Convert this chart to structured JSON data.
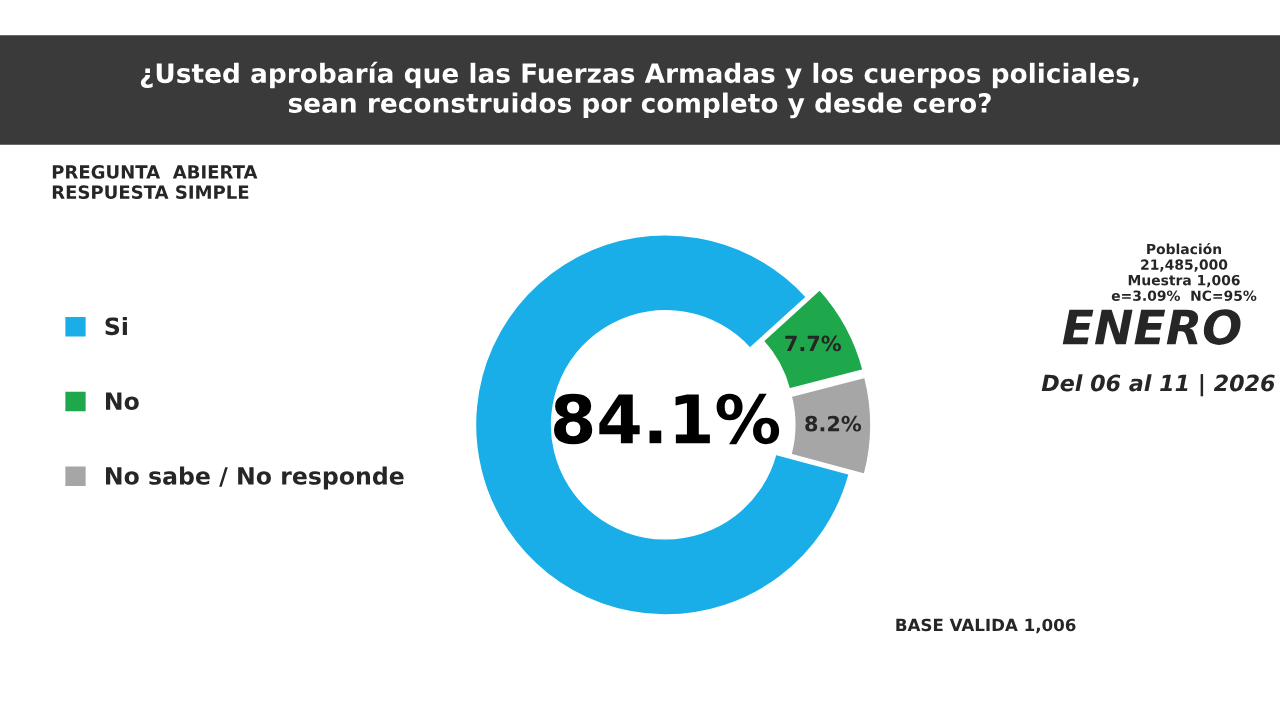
{
  "chart_data": {
    "type": "donut",
    "title": "¿Usted aprobaría que las Fuerzas Armadas y los cuerpos policiales,\nsean reconstruidos por completo y desde cero?",
    "subtitle": "PREGUNTA  ABIERTA\nRESPUESTA SIMPLE",
    "categories": [
      "Si",
      "No",
      "No sabe / No responde"
    ],
    "values": [
      84.1,
      7.7,
      8.2
    ],
    "value_labels": [
      "84.1%",
      "7.7%",
      "8.2%"
    ],
    "colors": [
      "#1aaee8",
      "#1ea84b",
      "#a6a6a6"
    ],
    "legend": "left",
    "annotations": [
      "Población\n21,485,000\nMuestra 1,006\ne=3.09%  NC=95%",
      "ENERO",
      "Del 06 al 11 | 2026",
      "BASE VALIDA 1,006"
    ]
  }
}
